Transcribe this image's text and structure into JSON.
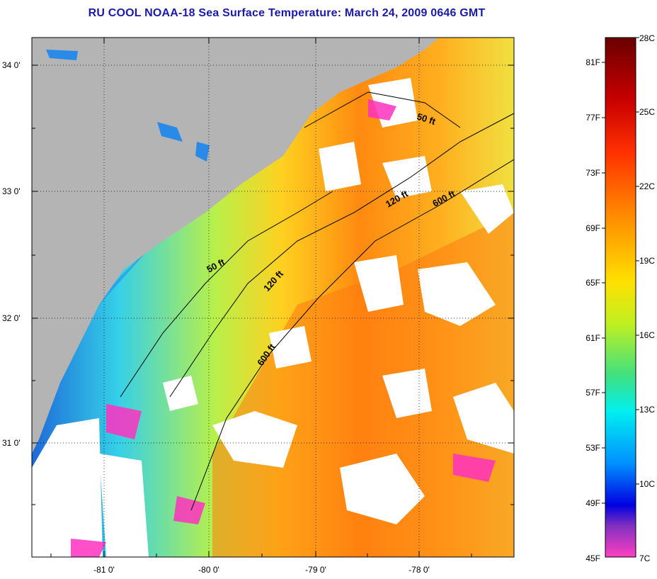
{
  "title": "RU COOL  NOAA-18  Sea Surface Temperature:  March 24, 2009 0646 GMT",
  "latitude_ticks": [
    "34 0'",
    "33 0'",
    "32 0'",
    "31 0'"
  ],
  "longitude_ticks": [
    "-81 0'",
    "-80 0'",
    "-79 0'",
    "-78 0'"
  ],
  "contours": {
    "c50a": "50 ft",
    "c50b": "50 ft",
    "c120a": "120 ft",
    "c120b": "120 ft",
    "c600a": "600 ft",
    "c600b": "600 ft"
  },
  "colorbar": {
    "fahrenheit": [
      "81F",
      "77F",
      "73F",
      "69F",
      "65F",
      "61F",
      "57F",
      "53F",
      "49F",
      "45F"
    ],
    "celsius": [
      "28C",
      "25C",
      "22C",
      "19C",
      "16C",
      "13C",
      "10C",
      "7C"
    ]
  },
  "colors": {
    "land": "#b4b4b4",
    "cloud": "#ffffff",
    "title": "#1a1aa8"
  }
}
